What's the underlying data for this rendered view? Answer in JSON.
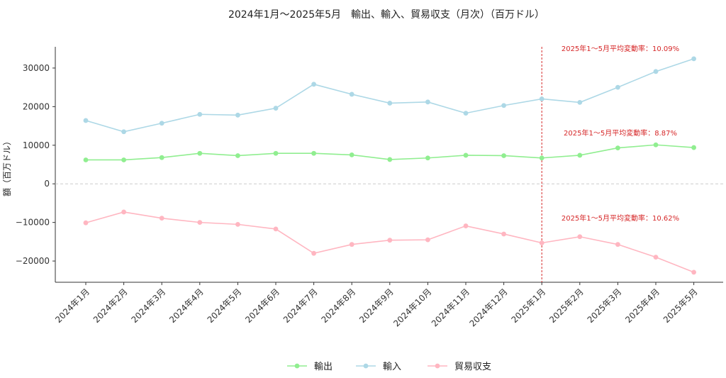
{
  "chart_data": {
    "type": "line",
    "title": "2024年1月～2025年5月　輸出、輸入、貿易収支（月次）（百万ドル）",
    "xlabel": "",
    "ylabel": "額（百万ドル）",
    "ylim": [
      -25500,
      35500
    ],
    "yticks": [
      -20000,
      -10000,
      0,
      10000,
      20000,
      30000
    ],
    "ytick_labels": [
      "−20000",
      "−10000",
      "0",
      "10000",
      "20000",
      "30000"
    ],
    "categories": [
      "2024年1月",
      "2024年2月",
      "2024年3月",
      "2024年4月",
      "2024年5月",
      "2024年6月",
      "2024年7月",
      "2024年8月",
      "2024年9月",
      "2024年10月",
      "2024年11月",
      "2024年12月",
      "2025年1月",
      "2025年2月",
      "2025年3月",
      "2025年4月",
      "2025年5月"
    ],
    "series": [
      {
        "name": "輸出",
        "color": "#90ee90",
        "values": [
          6200,
          6200,
          6800,
          7900,
          7300,
          7900,
          7900,
          7500,
          6300,
          6700,
          7400,
          7300,
          6700,
          7400,
          9300,
          10100,
          9400
        ]
      },
      {
        "name": "輸入",
        "color": "#add8e6",
        "values": [
          16400,
          13500,
          15700,
          18000,
          17800,
          19600,
          25800,
          23200,
          20900,
          21200,
          18300,
          20300,
          22000,
          21100,
          25000,
          29100,
          32400
        ]
      },
      {
        "name": "貿易収支",
        "color": "#ffb6c1",
        "values": [
          -10100,
          -7300,
          -8900,
          -10000,
          -10500,
          -11700,
          -18000,
          -15700,
          -14600,
          -14500,
          -10900,
          -13000,
          -15300,
          -13700,
          -15700,
          -19000,
          -22900
        ]
      }
    ],
    "reference_line": {
      "category": "2025年1月",
      "color": "#d62728",
      "style": "dashed"
    },
    "zero_line": {
      "color": "#cccccc",
      "style": "dashed"
    },
    "annotations": [
      {
        "text": "2025年1～5月平均変動率：10.09%",
        "series": "輸入"
      },
      {
        "text": "2025年1～5月平均変動率：8.87%",
        "series": "輸出"
      },
      {
        "text": "2025年1～5月平均変動率：10.62%",
        "series": "貿易収支"
      }
    ],
    "legend": {
      "placement": "bottom-center",
      "entries": [
        "輸出",
        "輸入",
        "貿易収支"
      ]
    },
    "grid": false
  }
}
